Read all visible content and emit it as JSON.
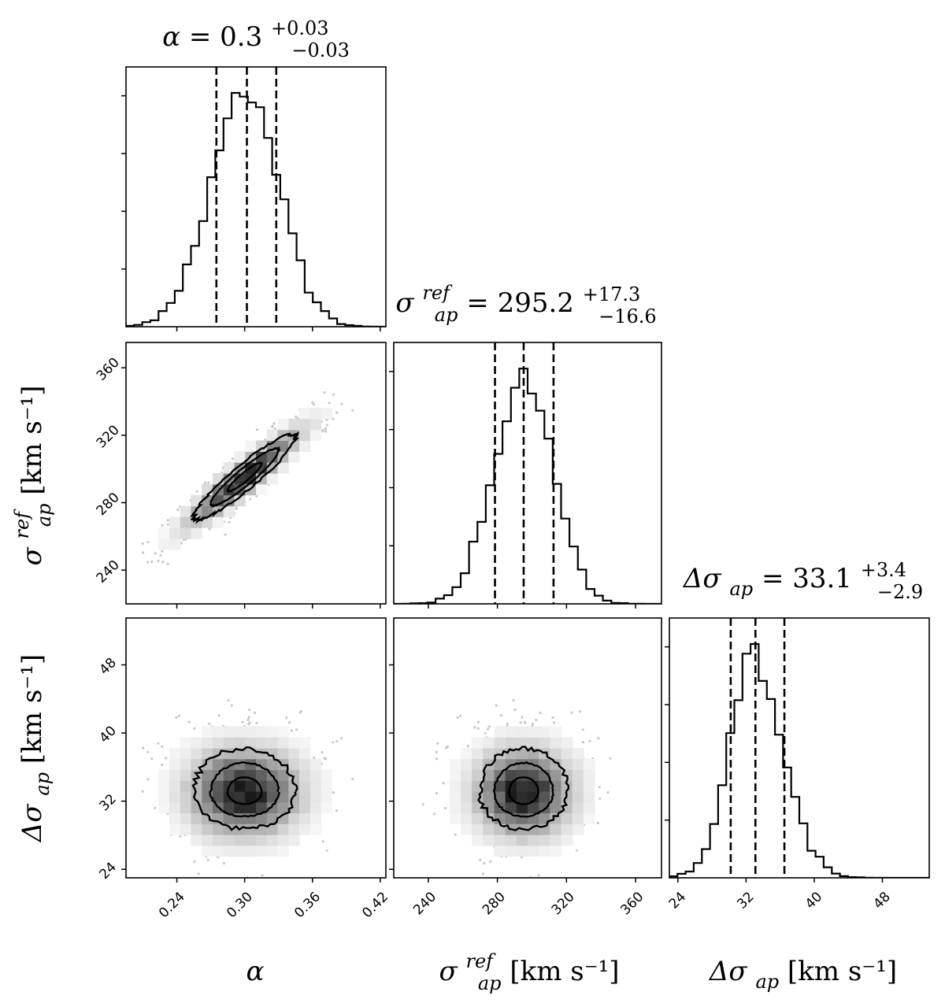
{
  "chart_data": {
    "type": "corner",
    "parameters": [
      {
        "key": "alpha",
        "symbol": "α",
        "sub": "",
        "sup": "",
        "unit": "",
        "median": 0.3,
        "plus": 0.03,
        "minus": 0.03,
        "median_text": "0.3",
        "plus_text": "+0.03",
        "minus_text": "−0.03",
        "range": [
          0.195,
          0.425
        ],
        "ticks": [
          0.24,
          0.3,
          0.36,
          0.42
        ],
        "tick_labels": [
          "0.24",
          "0.30",
          "0.36",
          "0.42"
        ],
        "quantiles": [
          0.275,
          0.302,
          0.328
        ]
      },
      {
        "key": "sigma_ref",
        "symbol": "σ",
        "sub": "ap",
        "sup": "ref",
        "unit": "[km s⁻¹]",
        "median": 295.2,
        "plus": 17.3,
        "minus": 16.6,
        "median_text": "295.2",
        "plus_text": "+17.3",
        "minus_text": "−16.6",
        "range": [
          220,
          375
        ],
        "ticks": [
          240,
          280,
          320,
          360
        ],
        "tick_labels": [
          "240",
          "280",
          "320",
          "360"
        ],
        "quantiles": [
          278.6,
          295.2,
          312.5
        ]
      },
      {
        "key": "delta_sigma",
        "symbol": "Δσ",
        "sub": "ap",
        "sup": "",
        "unit": "[km s⁻¹]",
        "median": 33.1,
        "plus": 3.4,
        "minus": 2.9,
        "median_text": "33.1",
        "plus_text": "+3.4",
        "minus_text": "−2.9",
        "range": [
          23.0,
          53.5
        ],
        "ticks": [
          24,
          32,
          40,
          48
        ],
        "tick_labels": [
          "24",
          "32",
          "40",
          "48"
        ],
        "quantiles": [
          30.2,
          33.1,
          36.5
        ]
      }
    ],
    "correlations": {
      "alpha_sigma_ref": 0.93,
      "alpha_delta_sigma": 0.0,
      "sigma_ref_delta_sigma": 0.0
    },
    "contour_levels_sigma": [
      0.5,
      1.0,
      1.5
    ],
    "show_title_values": true,
    "colors": {
      "line": "#000000",
      "density_max": "#1a1a1a",
      "scatter": "#c8c8c8"
    }
  }
}
